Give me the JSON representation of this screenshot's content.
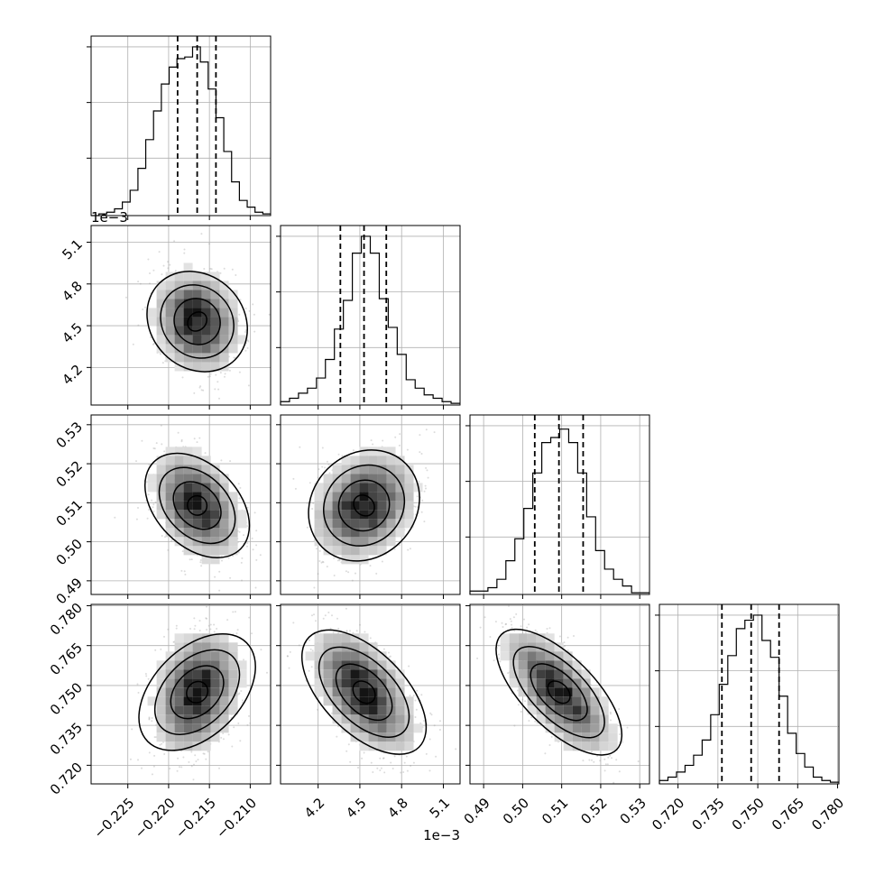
{
  "chart_data": {
    "type": "corner",
    "grid": true,
    "parameters": [
      {
        "index": 0,
        "range": [
          -0.2295,
          -0.2075
        ],
        "ticks": [
          "−0.225",
          "−0.220",
          "−0.215",
          "−0.210"
        ],
        "tick_values": [
          -0.225,
          -0.22,
          -0.215,
          -0.21
        ],
        "quantiles": [
          -0.2189,
          -0.2165,
          -0.2142
        ],
        "offset_label": ""
      },
      {
        "index": 1,
        "range": [
          3.93,
          5.22
        ],
        "ticks": [
          "4.2",
          "4.5",
          "4.8",
          "5.1"
        ],
        "tick_values": [
          4.2,
          4.5,
          4.8,
          5.1
        ],
        "quantiles": [
          4.36,
          4.53,
          4.69
        ],
        "offset_label": "1e−3"
      },
      {
        "index": 2,
        "range": [
          0.4865,
          0.5325
        ],
        "ticks": [
          "0.49",
          "0.50",
          "0.51",
          "0.52",
          "0.53"
        ],
        "tick_values": [
          0.49,
          0.5,
          0.51,
          0.52,
          0.53
        ],
        "quantiles": [
          0.5031,
          0.5093,
          0.5155
        ],
        "offset_label": ""
      },
      {
        "index": 3,
        "range": [
          0.713,
          0.7805
        ],
        "ticks": [
          "0.720",
          "0.735",
          "0.750",
          "0.765",
          "0.780"
        ],
        "tick_values": [
          0.72,
          0.735,
          0.75,
          0.765,
          0.78
        ],
        "quantiles": [
          0.7365,
          0.7475,
          0.758
        ],
        "offset_label": ""
      }
    ],
    "histograms": [
      [
        0,
        0.01,
        0.02,
        0.04,
        0.08,
        0.15,
        0.28,
        0.45,
        0.62,
        0.78,
        0.88,
        0.93,
        0.94,
        1.0,
        0.91,
        0.75,
        0.58,
        0.38,
        0.2,
        0.09,
        0.05,
        0.02,
        0.01
      ],
      [
        0.02,
        0.04,
        0.07,
        0.1,
        0.16,
        0.27,
        0.45,
        0.62,
        0.9,
        1.0,
        0.9,
        0.63,
        0.46,
        0.3,
        0.15,
        0.1,
        0.06,
        0.04,
        0.02,
        0.01
      ],
      [
        0.02,
        0.02,
        0.04,
        0.09,
        0.2,
        0.33,
        0.51,
        0.72,
        0.9,
        0.93,
        0.98,
        0.9,
        0.72,
        0.46,
        0.26,
        0.15,
        0.09,
        0.05,
        0.01,
        0.01
      ],
      [
        0.02,
        0.04,
        0.07,
        0.11,
        0.17,
        0.26,
        0.41,
        0.59,
        0.76,
        0.92,
        0.97,
        1.0,
        0.85,
        0.75,
        0.52,
        0.3,
        0.18,
        0.1,
        0.04,
        0.02,
        0.01
      ]
    ]
  }
}
